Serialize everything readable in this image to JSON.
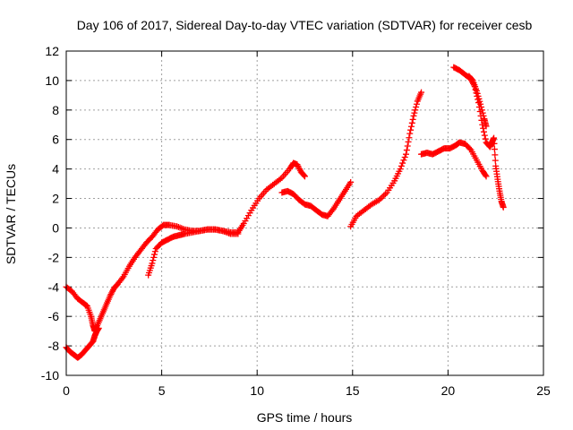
{
  "chart_data": {
    "type": "scatter",
    "title": "Day 106 of 2017, Sidereal Day-to-day VTEC variation (SDTVAR) for receiver cesb",
    "xlabel": "GPS time / hours",
    "ylabel": "SDTVAR / TECUs",
    "xlim": [
      0,
      25
    ],
    "ylim": [
      -10,
      12
    ],
    "xticks": [
      "0",
      "5",
      "10",
      "15",
      "20",
      "25"
    ],
    "yticks": [
      "-10",
      "-8",
      "-6",
      "-4",
      "-2",
      "0",
      "2",
      "4",
      "6",
      "8",
      "10",
      "12"
    ],
    "grid": true,
    "marker": "+",
    "color": "#ff0000",
    "series": [
      {
        "x": [
          0,
          0.3,
          0.6,
          0.9,
          1.1,
          1.3,
          1.4,
          1.5,
          1.7,
          1.9,
          2.1,
          2.3,
          2.5,
          2.7,
          3.0,
          3.3,
          3.6,
          3.9,
          4.2,
          4.5,
          4.8,
          5.1,
          5.4,
          5.8,
          6.2,
          6.6,
          7.0,
          7.4,
          7.8,
          8.2,
          8.6,
          9.0
        ],
        "y": [
          -4.0,
          -4.3,
          -4.8,
          -5.1,
          -5.3,
          -6.0,
          -6.6,
          -7.0,
          -6.4,
          -5.8,
          -5.2,
          -4.6,
          -4.1,
          -3.8,
          -3.3,
          -2.6,
          -2.0,
          -1.5,
          -1.0,
          -0.6,
          -0.1,
          0.2,
          0.2,
          0.1,
          -0.1,
          -0.2,
          -0.2,
          -0.1,
          -0.1,
          -0.2,
          -0.4,
          -0.4
        ]
      },
      {
        "x": [
          0,
          0.2,
          0.4,
          0.6,
          0.8,
          1.0,
          1.2,
          1.4,
          1.5,
          1.6,
          1.7
        ],
        "y": [
          -8.1,
          -8.4,
          -8.6,
          -8.8,
          -8.6,
          -8.3,
          -8.0,
          -7.7,
          -7.3,
          -7.0,
          -6.8
        ]
      },
      {
        "x": [
          4.3,
          4.5,
          4.7,
          5.0,
          5.3,
          5.6,
          5.9,
          6.2,
          6.6,
          7.0,
          7.4,
          7.8,
          8.2,
          8.6,
          9.0,
          9.3,
          9.7,
          10.1,
          10.5,
          10.9,
          11.3,
          11.7,
          11.9,
          12.1,
          12.3,
          12.5
        ],
        "y": [
          -3.2,
          -2.4,
          -1.4,
          -1.0,
          -0.8,
          -0.6,
          -0.5,
          -0.4,
          -0.3,
          -0.2,
          -0.1,
          -0.1,
          -0.2,
          -0.3,
          -0.3,
          0.3,
          1.2,
          2.0,
          2.6,
          3.0,
          3.4,
          4.0,
          4.4,
          4.3,
          3.8,
          3.5
        ]
      },
      {
        "x": [
          11.3,
          11.6,
          11.9,
          12.2,
          12.5,
          12.8,
          13.1,
          13.4,
          13.7,
          14.0,
          14.3,
          14.6,
          14.9
        ],
        "y": [
          2.4,
          2.5,
          2.3,
          1.9,
          1.6,
          1.5,
          1.2,
          0.9,
          0.8,
          1.3,
          1.9,
          2.5,
          3.1
        ]
      },
      {
        "x": [
          14.9,
          15.2,
          15.6,
          16.0,
          16.4,
          16.8,
          17.2,
          17.5,
          17.8,
          18.0,
          18.2,
          18.4,
          18.6
        ],
        "y": [
          0.1,
          0.8,
          1.2,
          1.6,
          1.9,
          2.4,
          3.2,
          4.0,
          5.0,
          6.4,
          7.6,
          8.6,
          9.2
        ]
      },
      {
        "x": [
          18.6,
          18.9,
          19.2,
          19.5,
          19.8,
          20.1,
          20.4,
          20.6,
          20.9,
          21.2,
          21.5,
          21.8,
          22.0
        ],
        "y": [
          5.0,
          5.1,
          5.0,
          5.2,
          5.4,
          5.4,
          5.6,
          5.8,
          5.7,
          5.3,
          4.6,
          3.9,
          3.5
        ]
      },
      {
        "x": [
          20.3,
          20.6,
          20.9,
          21.2,
          21.4,
          21.6,
          21.8,
          22.0,
          22.2,
          22.3,
          22.4,
          22.5,
          22.6,
          22.7,
          22.8,
          22.9
        ],
        "y": [
          10.9,
          10.7,
          10.4,
          10.1,
          9.6,
          8.5,
          7.0,
          5.8,
          5.5,
          5.8,
          6.1,
          4.2,
          3.3,
          2.5,
          1.8,
          1.4
        ]
      },
      {
        "x": [
          21.1,
          21.3,
          21.5,
          21.7,
          21.9,
          22.0
        ],
        "y": [
          10.3,
          10.0,
          9.3,
          8.4,
          7.4,
          6.9
        ]
      }
    ]
  }
}
